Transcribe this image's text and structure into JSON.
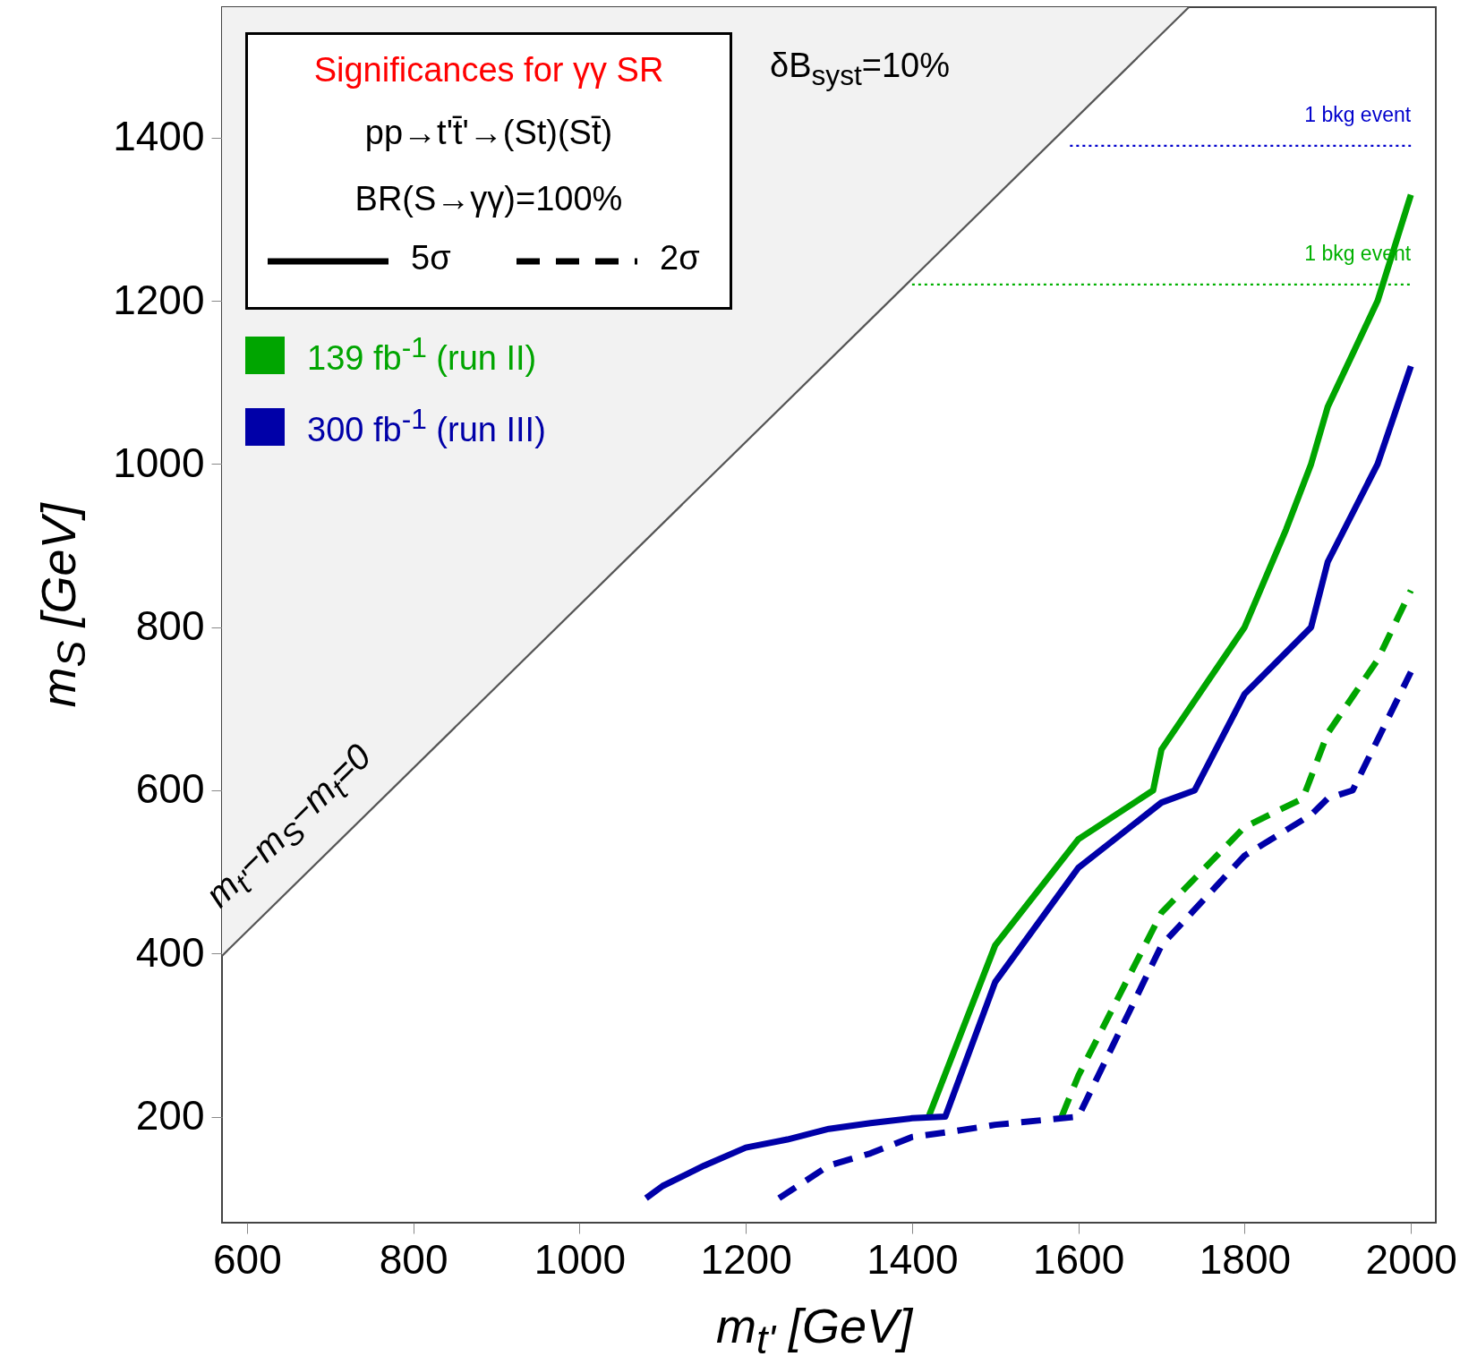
{
  "chart_data": {
    "type": "line",
    "legend_title": "Significances for γγ SR",
    "xlabel": "m$_{t'}$ [GeV]",
    "ylabel": "m$_{S}$ [GeV]",
    "xlim": [
      570,
      2030
    ],
    "ylim": [
      70,
      1560
    ],
    "xticks": [
      600,
      800,
      1000,
      1200,
      1400,
      1600,
      1800,
      2000
    ],
    "yticks": [
      200,
      400,
      600,
      800,
      1000,
      1200,
      1400
    ],
    "grid": false,
    "legend": "top left",
    "series": [
      {
        "color": "#555555",
        "line_style": "solid",
        "x": [
          570,
          1733
        ],
        "values": [
          397,
          1560
        ],
        "lower": [
          397,
          1560
        ],
        "upper": [
          1560,
          1560
        ]
      },
      {
        "color": "#0000cc",
        "line_style": "dotted",
        "x": [
          1590,
          2000
        ],
        "values": [
          1390,
          1390
        ]
      },
      {
        "color": "#00b000",
        "line_style": "dotted",
        "x": [
          1400,
          2000
        ],
        "values": [
          1220,
          1220
        ]
      },
      {
        "name": "139 fb$^{-1}$ (run II)",
        "color": "#00a500",
        "line_style": "solid",
        "x": [
          1420,
          1500,
          1600,
          1690,
          1700,
          1800,
          1850,
          1880,
          1900,
          1960,
          2000
        ],
        "values": [
          200,
          410,
          540,
          600,
          650,
          800,
          920,
          1000,
          1070,
          1200,
          1330
        ]
      },
      {
        "name": "300 fb$^{-1}$ (run III)",
        "color": "#0000a8",
        "line_style": "solid",
        "x": [
          1080,
          1100,
          1150,
          1200,
          1250,
          1300,
          1350,
          1400,
          1440,
          1500,
          1600,
          1700,
          1740,
          1800,
          1880,
          1900,
          1960,
          2000
        ],
        "values": [
          100,
          115,
          140,
          162,
          172,
          185,
          192,
          198,
          200,
          365,
          505,
          585,
          600,
          718,
          800,
          880,
          1000,
          1120
        ]
      },
      {
        "color": "#00a500",
        "line_style": "dashed",
        "x": [
          1580,
          1600,
          1700,
          1800,
          1870,
          1900,
          1960,
          2000
        ],
        "values": [
          200,
          250,
          450,
          555,
          590,
          670,
          760,
          845
        ]
      },
      {
        "color": "#0000a8",
        "line_style": "dashed",
        "x": [
          1240,
          1300,
          1350,
          1400,
          1450,
          1500,
          1600,
          1700,
          1800,
          1880,
          1900,
          1930,
          2000
        ],
        "values": [
          100,
          140,
          155,
          175,
          182,
          190,
          200,
          410,
          520,
          570,
          590,
          600,
          745
        ]
      }
    ],
    "annotations": [
      "δB$_{syst}$=10%",
      "pp→t't̄'→(St)(St̄)",
      "BR(S→γγ)=100%",
      "5σ",
      "2σ",
      "m$_{t'}$−m$_{S}$−m$_{t}$=0",
      {
        "text": "1 bkg event",
        "x": 2000,
        "y": 1390
      },
      {
        "text": "1 bkg event",
        "x": 2000,
        "y": 1220
      }
    ]
  }
}
